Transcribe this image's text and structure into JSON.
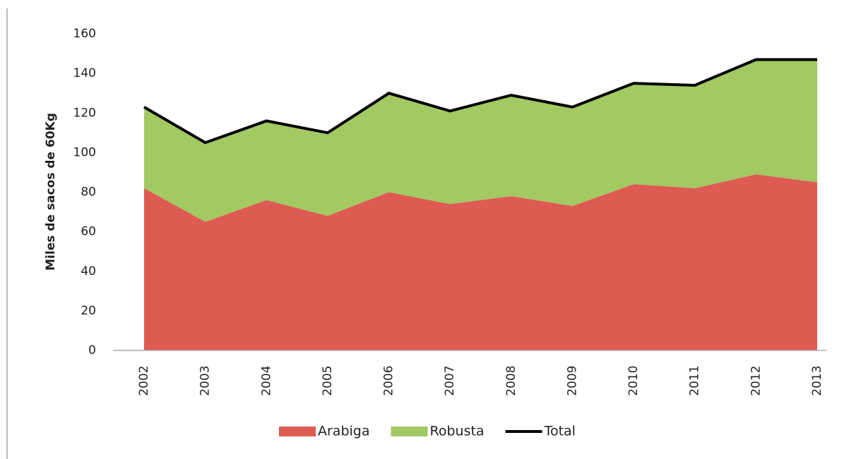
{
  "chart_data": {
    "type": "area",
    "stacked": true,
    "ylabel": "Miles de sacos de 60Kg",
    "categories": [
      "2002",
      "2003",
      "2004",
      "2005",
      "2006",
      "2007",
      "2008",
      "2009",
      "2010",
      "2011",
      "2012",
      "2013"
    ],
    "series": [
      {
        "name": "Arabiga",
        "color": "#de5b53",
        "values": [
          82,
          65,
          76,
          68,
          80,
          74,
          78,
          73,
          84,
          82,
          89,
          85
        ]
      },
      {
        "name": "Robusta",
        "color": "#a2c962",
        "values": [
          41,
          40,
          40,
          42,
          50,
          47,
          51,
          50,
          51,
          52,
          58,
          62
        ]
      },
      {
        "name": "Total",
        "color": "#000000",
        "type": "line",
        "values": [
          123,
          105,
          116,
          110,
          130,
          121,
          129,
          123,
          135,
          134,
          147,
          147
        ]
      }
    ],
    "ylim": [
      0,
      160
    ],
    "yticks": [
      0,
      20,
      40,
      60,
      80,
      100,
      120,
      140,
      160
    ],
    "grid": false,
    "legend": "bottom"
  }
}
